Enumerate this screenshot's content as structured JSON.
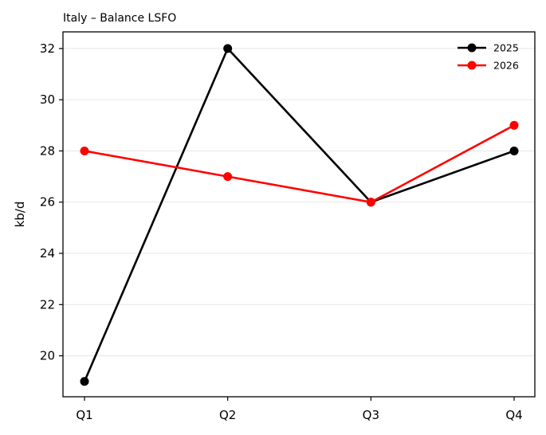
{
  "chart_data": {
    "type": "line",
    "title": "Italy – Balance LSFO",
    "xlabel": "",
    "ylabel": "kb/d",
    "categories": [
      "Q1",
      "Q2",
      "Q3",
      "Q4"
    ],
    "ylim": [
      18.4,
      32.65
    ],
    "yticks": [
      20,
      22,
      24,
      26,
      28,
      30,
      32
    ],
    "grid": "horizontal",
    "legend_position": "top-right",
    "series": [
      {
        "name": "2025",
        "color": "#000000",
        "values": [
          19,
          32,
          26,
          28
        ]
      },
      {
        "name": "2026",
        "color": "#ff0000",
        "values": [
          28,
          27,
          26,
          29
        ]
      }
    ]
  }
}
